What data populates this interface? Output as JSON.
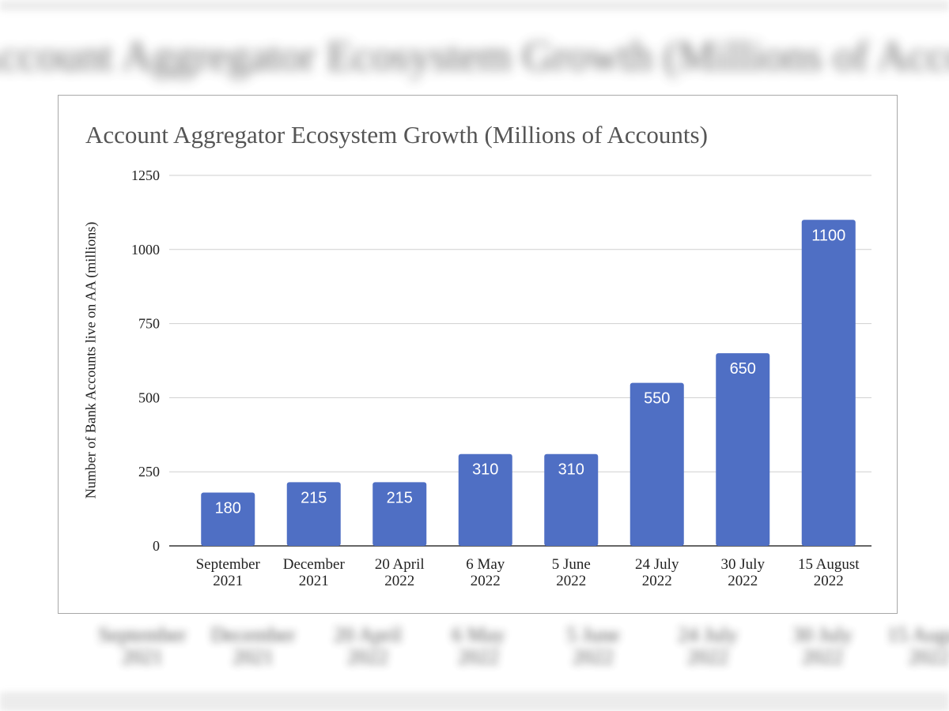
{
  "chart_data": {
    "type": "bar",
    "title": "Account Aggregator Ecosystem Growth (Millions of Accounts)",
    "xlabel": "",
    "ylabel": "Number of Bank Accounts live on AA (millions)",
    "categories": [
      [
        "September",
        "2021"
      ],
      [
        "December",
        "2021"
      ],
      [
        "20 April",
        "2022"
      ],
      [
        "6 May",
        "2022"
      ],
      [
        "5 June",
        "2022"
      ],
      [
        "24 July",
        "2022"
      ],
      [
        "30 July",
        "2022"
      ],
      [
        "15 August",
        "2022"
      ]
    ],
    "values": [
      180,
      215,
      215,
      310,
      310,
      550,
      650,
      1100
    ],
    "ylim": [
      0,
      1250
    ],
    "yticks": [
      0,
      250,
      500,
      750,
      1000,
      1250
    ],
    "grid": true,
    "legend": "none",
    "data_labels": true,
    "bar_color": "#4f6fc4"
  }
}
